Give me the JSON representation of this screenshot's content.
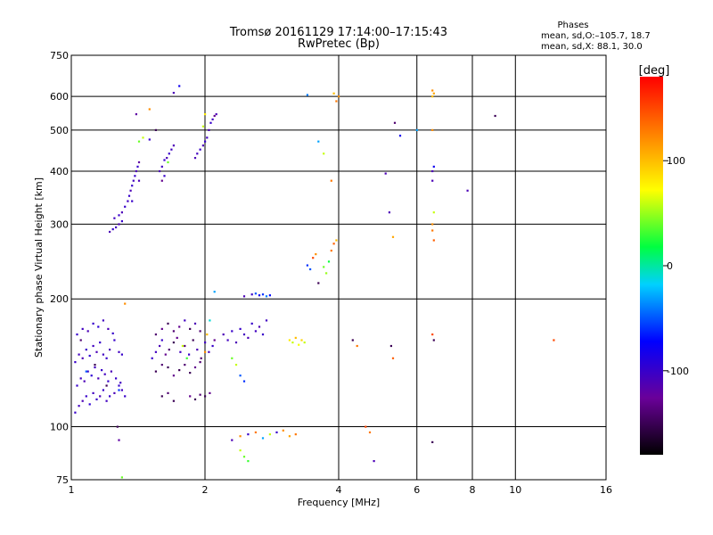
{
  "chart_data": {
    "type": "scatter",
    "title": "Tromsø 20161129 17:14:00–17:15:43",
    "subtitle": "RwPretec (Bp)",
    "xlabel": "Frequency [MHz]",
    "ylabel": "Stationary phase Virtual Height [km]",
    "x_scale": "log",
    "y_scale": "log",
    "xlim": [
      1,
      16
    ],
    "ylim": [
      75,
      750
    ],
    "x_ticks": [
      1,
      2,
      4,
      6,
      8,
      10,
      16
    ],
    "y_ticks": [
      75,
      100,
      200,
      300,
      400,
      500,
      600,
      750
    ],
    "grid": true,
    "phases_box": {
      "title": "Phases",
      "line_o": "mean, sd,O:–105.7, 18.7",
      "line_x": "mean, sd,X:  88.1, 30.0"
    },
    "colorbar": {
      "label": "[deg]",
      "range": [
        -180,
        180
      ],
      "ticks": [
        100,
        0,
        -100
      ]
    },
    "points": [
      [
        1.02,
        108,
        -100
      ],
      [
        1.04,
        112,
        -105
      ],
      [
        1.06,
        115,
        -110
      ],
      [
        1.08,
        118,
        -100
      ],
      [
        1.1,
        113,
        -95
      ],
      [
        1.12,
        120,
        -105
      ],
      [
        1.14,
        116,
        -100
      ],
      [
        1.16,
        118,
        -110
      ],
      [
        1.18,
        122,
        -100
      ],
      [
        1.2,
        115,
        -105
      ],
      [
        1.22,
        118,
        -100
      ],
      [
        1.25,
        120,
        -110
      ],
      [
        1.28,
        125,
        -100
      ],
      [
        1.3,
        122,
        -105
      ],
      [
        1.32,
        118,
        -100
      ],
      [
        1.03,
        125,
        -100
      ],
      [
        1.05,
        130,
        -105
      ],
      [
        1.07,
        128,
        -110
      ],
      [
        1.09,
        135,
        -100
      ],
      [
        1.11,
        132,
        -95
      ],
      [
        1.13,
        138,
        -105
      ],
      [
        1.15,
        130,
        -110
      ],
      [
        1.17,
        136,
        -100
      ],
      [
        1.19,
        133,
        -105
      ],
      [
        1.21,
        128,
        -100
      ],
      [
        1.23,
        135,
        -110
      ],
      [
        1.26,
        130,
        -100
      ],
      [
        1.29,
        127,
        -105
      ],
      [
        1.02,
        142,
        -100
      ],
      [
        1.04,
        148,
        -105
      ],
      [
        1.06,
        145,
        -110
      ],
      [
        1.08,
        152,
        -100
      ],
      [
        1.1,
        147,
        -95
      ],
      [
        1.12,
        155,
        -105
      ],
      [
        1.14,
        150,
        -110
      ],
      [
        1.16,
        158,
        -100
      ],
      [
        1.18,
        148,
        -105
      ],
      [
        1.2,
        145,
        -100
      ],
      [
        1.22,
        152,
        -110
      ],
      [
        1.25,
        160,
        -100
      ],
      [
        1.28,
        150,
        -105
      ],
      [
        1.3,
        148,
        -100
      ],
      [
        1.03,
        165,
        -100
      ],
      [
        1.06,
        170,
        -105
      ],
      [
        1.09,
        168,
        -110
      ],
      [
        1.12,
        175,
        -100
      ],
      [
        1.15,
        172,
        -95
      ],
      [
        1.18,
        178,
        -105
      ],
      [
        1.21,
        170,
        -110
      ],
      [
        1.24,
        166,
        -100
      ],
      [
        1.05,
        160,
        -140
      ],
      [
        1.13,
        140,
        -150
      ],
      [
        1.2,
        125,
        -150
      ],
      [
        1.08,
        135,
        -50
      ],
      [
        1.28,
        122,
        -60
      ],
      [
        1.32,
        195,
        120
      ],
      [
        1.27,
        100,
        -150
      ],
      [
        1.28,
        93,
        -120
      ],
      [
        1.3,
        76,
        40
      ],
      [
        1.22,
        288,
        -110
      ],
      [
        1.24,
        292,
        -100
      ],
      [
        1.26,
        295,
        -105
      ],
      [
        1.28,
        300,
        -110
      ],
      [
        1.3,
        305,
        -100
      ],
      [
        1.25,
        310,
        -105
      ],
      [
        1.28,
        315,
        -100
      ],
      [
        1.3,
        320,
        -110
      ],
      [
        1.32,
        330,
        -100
      ],
      [
        1.34,
        340,
        -105
      ],
      [
        1.35,
        350,
        -100
      ],
      [
        1.36,
        360,
        -110
      ],
      [
        1.37,
        370,
        -100
      ],
      [
        1.38,
        380,
        -105
      ],
      [
        1.39,
        390,
        -100
      ],
      [
        1.4,
        400,
        -110
      ],
      [
        1.41,
        410,
        -100
      ],
      [
        1.42,
        420,
        -120
      ],
      [
        1.42,
        380,
        -110
      ],
      [
        1.37,
        340,
        -100
      ],
      [
        1.4,
        545,
        -120
      ],
      [
        1.5,
        560,
        120
      ],
      [
        1.55,
        500,
        -150
      ],
      [
        1.5,
        475,
        -100
      ],
      [
        1.45,
        480,
        60
      ],
      [
        1.42,
        470,
        40
      ],
      [
        1.7,
        612,
        -110
      ],
      [
        1.75,
        635,
        -80
      ],
      [
        1.58,
        400,
        -110
      ],
      [
        1.6,
        410,
        -105
      ],
      [
        1.62,
        425,
        -100
      ],
      [
        1.64,
        430,
        -110
      ],
      [
        1.66,
        440,
        -100
      ],
      [
        1.68,
        450,
        -105
      ],
      [
        1.7,
        460,
        -110
      ],
      [
        1.65,
        420,
        40
      ],
      [
        1.62,
        390,
        -100
      ],
      [
        1.6,
        380,
        -130
      ],
      [
        1.9,
        430,
        -110
      ],
      [
        1.92,
        440,
        -105
      ],
      [
        1.95,
        450,
        -100
      ],
      [
        1.98,
        460,
        -110
      ],
      [
        2.0,
        470,
        -100
      ],
      [
        2.02,
        480,
        -105
      ],
      [
        2.04,
        500,
        -110
      ],
      [
        2.06,
        520,
        -100
      ],
      [
        2.08,
        530,
        -105
      ],
      [
        2.1,
        540,
        -130
      ],
      [
        2.12,
        545,
        -110
      ],
      [
        1.98,
        510,
        60
      ],
      [
        2.0,
        545,
        80
      ],
      [
        1.52,
        145,
        -100
      ],
      [
        1.55,
        150,
        -105
      ],
      [
        1.58,
        155,
        -110
      ],
      [
        1.6,
        160,
        -100
      ],
      [
        1.63,
        148,
        -130
      ],
      [
        1.66,
        152,
        -140
      ],
      [
        1.7,
        158,
        -150
      ],
      [
        1.73,
        162,
        -130
      ],
      [
        1.76,
        150,
        -105
      ],
      [
        1.8,
        155,
        -140
      ],
      [
        1.84,
        148,
        -100
      ],
      [
        1.88,
        160,
        -150
      ],
      [
        1.92,
        152,
        -110
      ],
      [
        1.96,
        145,
        -140
      ],
      [
        2.0,
        158,
        -105
      ],
      [
        2.04,
        150,
        -110
      ],
      [
        2.08,
        155,
        -100
      ],
      [
        2.1,
        160,
        -130
      ],
      [
        1.55,
        165,
        -140
      ],
      [
        1.6,
        170,
        -130
      ],
      [
        1.65,
        175,
        -150
      ],
      [
        1.7,
        168,
        -140
      ],
      [
        1.75,
        172,
        -130
      ],
      [
        1.8,
        178,
        -105
      ],
      [
        1.85,
        170,
        -150
      ],
      [
        1.9,
        175,
        -110
      ],
      [
        1.95,
        168,
        -140
      ],
      [
        1.55,
        135,
        -150
      ],
      [
        1.6,
        140,
        -140
      ],
      [
        1.65,
        138,
        -150
      ],
      [
        1.7,
        132,
        -130
      ],
      [
        1.75,
        136,
        -150
      ],
      [
        1.8,
        140,
        -140
      ],
      [
        1.85,
        134,
        -150
      ],
      [
        1.9,
        138,
        -130
      ],
      [
        1.95,
        142,
        -140
      ],
      [
        1.6,
        118,
        -150
      ],
      [
        1.65,
        120,
        -140
      ],
      [
        1.7,
        115,
        -150
      ],
      [
        1.85,
        118,
        -130
      ],
      [
        1.9,
        116,
        -150
      ],
      [
        1.95,
        119,
        -140
      ],
      [
        2.0,
        118,
        -150
      ],
      [
        2.05,
        120,
        -130
      ],
      [
        1.78,
        155,
        60
      ],
      [
        1.82,
        145,
        30
      ],
      [
        2.0,
        150,
        120
      ],
      [
        2.02,
        165,
        100
      ],
      [
        2.05,
        178,
        -10
      ],
      [
        2.2,
        165,
        -110
      ],
      [
        2.25,
        160,
        -105
      ],
      [
        2.3,
        168,
        -100
      ],
      [
        2.35,
        158,
        -110
      ],
      [
        2.4,
        170,
        -100
      ],
      [
        2.45,
        165,
        -105
      ],
      [
        2.5,
        162,
        -110
      ],
      [
        2.55,
        175,
        -100
      ],
      [
        2.6,
        168,
        -105
      ],
      [
        2.65,
        172,
        -110
      ],
      [
        2.7,
        165,
        -100
      ],
      [
        2.75,
        178,
        -105
      ],
      [
        2.3,
        145,
        40
      ],
      [
        2.35,
        140,
        60
      ],
      [
        2.4,
        132,
        -50
      ],
      [
        2.45,
        128,
        -60
      ],
      [
        2.1,
        208,
        -30
      ],
      [
        2.45,
        203,
        -110
      ],
      [
        2.55,
        205,
        -100
      ],
      [
        2.6,
        206,
        -50
      ],
      [
        2.65,
        204,
        -80
      ],
      [
        2.7,
        205,
        -60
      ],
      [
        2.75,
        203,
        -40
      ],
      [
        2.8,
        204,
        -70
      ],
      [
        3.1,
        160,
        80
      ],
      [
        3.15,
        158,
        60
      ],
      [
        3.2,
        162,
        100
      ],
      [
        3.25,
        156,
        70
      ],
      [
        3.3,
        160,
        90
      ],
      [
        3.35,
        158,
        60
      ],
      [
        2.3,
        93,
        -110
      ],
      [
        2.4,
        95,
        120
      ],
      [
        2.5,
        96,
        -100
      ],
      [
        2.6,
        97,
        130
      ],
      [
        2.7,
        94,
        -30
      ],
      [
        2.8,
        96,
        60
      ],
      [
        2.9,
        97,
        -100
      ],
      [
        3.0,
        98,
        120
      ],
      [
        3.1,
        95,
        110
      ],
      [
        3.2,
        96,
        130
      ],
      [
        2.4,
        88,
        60
      ],
      [
        2.45,
        85,
        40
      ],
      [
        2.5,
        83,
        30
      ],
      [
        3.4,
        240,
        -60
      ],
      [
        3.45,
        235,
        -50
      ],
      [
        3.5,
        250,
        150
      ],
      [
        3.55,
        255,
        120
      ],
      [
        3.7,
        238,
        40
      ],
      [
        3.75,
        230,
        50
      ],
      [
        3.8,
        245,
        20
      ],
      [
        3.85,
        260,
        130
      ],
      [
        3.9,
        270,
        140
      ],
      [
        3.95,
        275,
        100
      ],
      [
        3.6,
        218,
        -150
      ],
      [
        3.4,
        605,
        -40
      ],
      [
        3.95,
        585,
        130
      ],
      [
        4.0,
        600,
        120
      ],
      [
        3.9,
        610,
        100
      ],
      [
        3.6,
        470,
        -30
      ],
      [
        3.7,
        440,
        60
      ],
      [
        3.85,
        380,
        130
      ],
      [
        4.3,
        160,
        -150
      ],
      [
        4.4,
        155,
        130
      ],
      [
        4.6,
        100,
        150
      ],
      [
        4.7,
        97,
        130
      ],
      [
        4.8,
        83,
        -110
      ],
      [
        5.1,
        395,
        -110
      ],
      [
        5.2,
        320,
        -110
      ],
      [
        5.3,
        280,
        110
      ],
      [
        5.25,
        155,
        -150
      ],
      [
        5.3,
        145,
        140
      ],
      [
        5.35,
        520,
        -140
      ],
      [
        5.5,
        485,
        -80
      ],
      [
        6.0,
        500,
        -30
      ],
      [
        6.5,
        620,
        120
      ],
      [
        6.55,
        610,
        110
      ],
      [
        6.5,
        600,
        100
      ],
      [
        6.5,
        500,
        120
      ],
      [
        6.55,
        410,
        -80
      ],
      [
        6.5,
        400,
        -110
      ],
      [
        6.5,
        380,
        -110
      ],
      [
        6.55,
        320,
        60
      ],
      [
        6.5,
        300,
        120
      ],
      [
        6.5,
        290,
        130
      ],
      [
        6.55,
        275,
        140
      ],
      [
        6.5,
        165,
        150
      ],
      [
        6.55,
        160,
        -150
      ],
      [
        6.5,
        92,
        -150
      ],
      [
        7.8,
        360,
        -110
      ],
      [
        9.0,
        540,
        -150
      ],
      [
        12.2,
        160,
        150
      ]
    ]
  }
}
